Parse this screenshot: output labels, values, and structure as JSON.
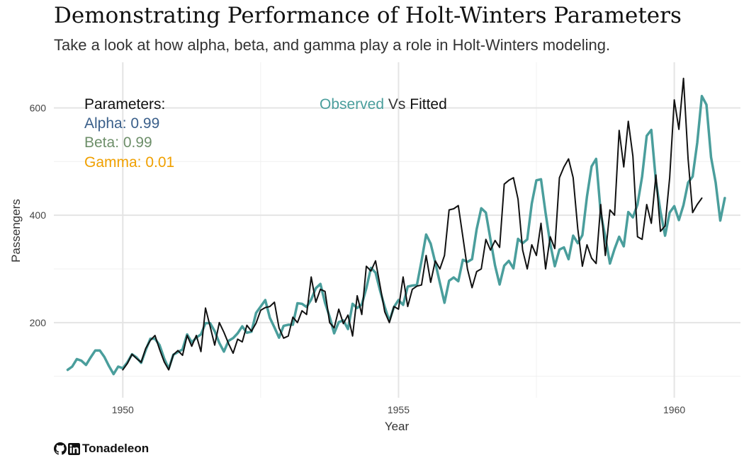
{
  "chart_data": {
    "type": "line",
    "title": "Demonstrating Performance of Holt-Winters Parameters",
    "subtitle": "Take a look at how alpha, beta, and gamma play a role in Holt-Winters modeling.",
    "xlabel": "Year",
    "ylabel": "Passengers",
    "xlim": [
      1948.75,
      1961.2
    ],
    "ylim": [
      60,
      685
    ],
    "x_ticks": [
      1950,
      1955,
      1960
    ],
    "y_ticks": [
      200,
      400,
      600
    ],
    "grid": true,
    "series": [
      {
        "key": "observed",
        "start": 1949.0,
        "step": 0.0833333,
        "color": "#4a9e9c",
        "values": [
          112,
          118,
          132,
          129,
          121,
          135,
          148,
          148,
          136,
          119,
          104,
          118,
          115,
          126,
          141,
          135,
          125,
          149,
          170,
          170,
          158,
          133,
          114,
          140,
          145,
          150,
          178,
          163,
          172,
          178,
          199,
          199,
          184,
          162,
          146,
          166,
          171,
          180,
          193,
          181,
          183,
          218,
          230,
          242,
          209,
          191,
          172,
          194,
          196,
          196,
          236,
          235,
          229,
          243,
          264,
          272,
          237,
          211,
          180,
          201,
          204,
          188,
          235,
          227,
          234,
          264,
          302,
          293,
          259,
          229,
          203,
          229,
          242,
          233,
          267,
          269,
          270,
          315,
          364,
          347,
          312,
          274,
          237,
          278,
          284,
          277,
          317,
          313,
          318,
          374,
          413,
          405,
          355,
          306,
          271,
          306,
          315,
          301,
          356,
          348,
          355,
          422,
          465,
          467,
          404,
          347,
          305,
          336,
          340,
          318,
          362,
          348,
          363,
          435,
          491,
          505,
          404,
          359,
          310,
          337,
          360,
          342,
          406,
          396,
          420,
          472,
          548,
          559,
          463,
          407,
          362,
          405,
          417,
          391,
          419,
          461,
          472,
          535,
          622,
          606,
          508,
          461,
          390,
          432
        ]
      },
      {
        "key": "fitted",
        "start": 1950.0,
        "step": 0.0833333,
        "color": "#111111",
        "values": [
          112,
          124,
          141,
          133,
          126,
          152,
          167,
          176,
          150,
          127,
          112,
          140,
          148,
          139,
          176,
          156,
          176,
          146,
          227,
          193,
          158,
          200,
          182,
          161,
          143,
          169,
          164,
          195,
          184,
          199,
          223,
          228,
          230,
          238,
          190,
          171,
          175,
          210,
          200,
          222,
          215,
          285,
          238,
          262,
          258,
          200,
          190,
          225,
          198,
          214,
          175,
          250,
          215,
          305,
          296,
          315,
          268,
          220,
          200,
          230,
          225,
          285,
          230,
          262,
          268,
          270,
          325,
          275,
          315,
          300,
          325,
          410,
          412,
          418,
          360,
          300,
          265,
          295,
          300,
          355,
          335,
          353,
          340,
          458,
          465,
          470,
          430,
          335,
          300,
          345,
          325,
          385,
          300,
          360,
          338,
          470,
          490,
          505,
          470,
          375,
          305,
          345,
          320,
          310,
          420,
          325,
          410,
          400,
          558,
          490,
          575,
          510,
          360,
          355,
          420,
          385,
          475,
          370,
          380,
          470,
          615,
          560,
          655,
          505,
          405,
          420,
          432
        ]
      }
    ],
    "annotations": {
      "params_label": "Parameters:",
      "alpha": "Alpha: 0.99",
      "beta": "Beta: 0.99",
      "gamma": "Gamma: 0.01",
      "observed": "Observed",
      "vs": "Vs",
      "fitted": "Fitted"
    },
    "colors": {
      "params": "#111111",
      "alpha": "#3a5f8a",
      "beta": "#6e8f6a",
      "gamma": "#f0a000",
      "observed": "#4a9e9c",
      "vs": "#333333",
      "fitted": "#111111",
      "grid_major": "#e4e4e4",
      "grid_minor": "#f0f0f0"
    }
  },
  "caption": {
    "author": "Tonadeleon",
    "icons": [
      "github-icon",
      "linkedin-icon"
    ]
  }
}
